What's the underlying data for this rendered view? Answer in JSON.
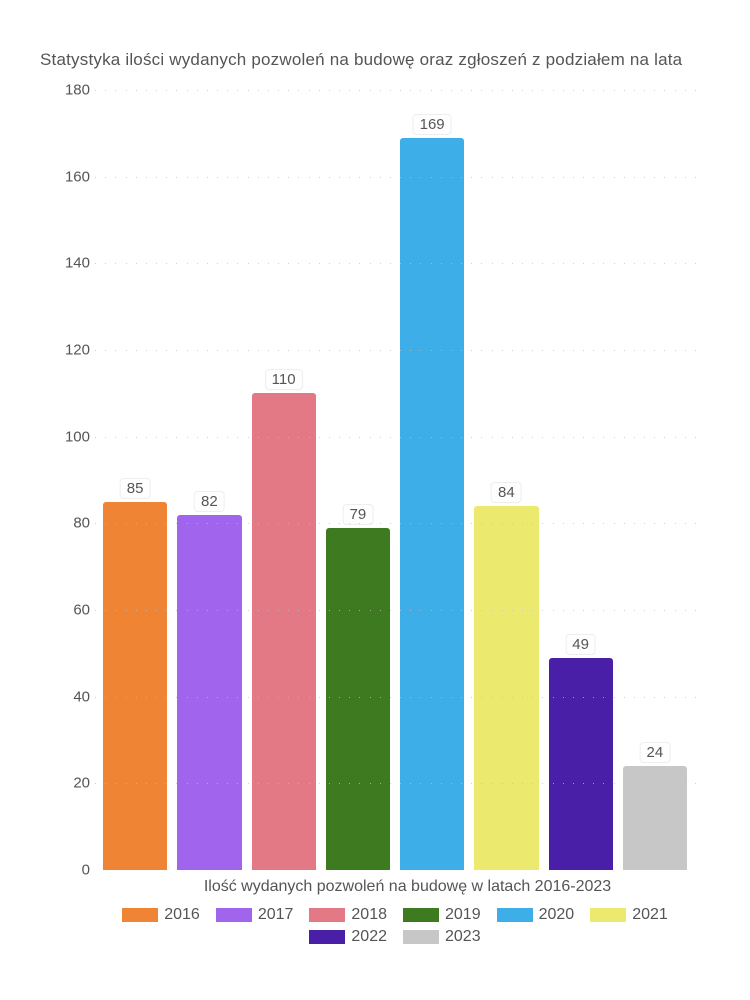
{
  "chart": {
    "type": "bar",
    "title": "Statystyka ilości wydanych pozwoleń na budowę oraz zgłoszeń z podziałem na lata",
    "x_axis_label": "Ilość wydanych pozwoleń na budowę w latach 2016-2023",
    "ylim": [
      0,
      180
    ],
    "ytick_step": 20,
    "yticks": [
      0,
      20,
      40,
      60,
      80,
      100,
      120,
      140,
      160,
      180
    ],
    "background_color": "#ffffff",
    "grid_dot_color": "#c0c0c0",
    "title_fontsize": 17,
    "tick_fontsize": 15,
    "label_fontsize": 16,
    "title_color": "#555555",
    "text_color": "#555555",
    "bar_label_bg": "#fefefe",
    "bar_label_border": "#eeeeee",
    "series": [
      {
        "year": "2016",
        "value": 85,
        "color": "#ee8434"
      },
      {
        "year": "2017",
        "value": 82,
        "color": "#a065ec"
      },
      {
        "year": "2018",
        "value": 110,
        "color": "#e27985"
      },
      {
        "year": "2019",
        "value": 79,
        "color": "#3e7a1f"
      },
      {
        "year": "2020",
        "value": 169,
        "color": "#3eaee8"
      },
      {
        "year": "2021",
        "value": 84,
        "color": "#ece96f"
      },
      {
        "year": "2022",
        "value": 49,
        "color": "#4a1fa8"
      },
      {
        "year": "2023",
        "value": 24,
        "color": "#c7c7c7"
      }
    ]
  }
}
